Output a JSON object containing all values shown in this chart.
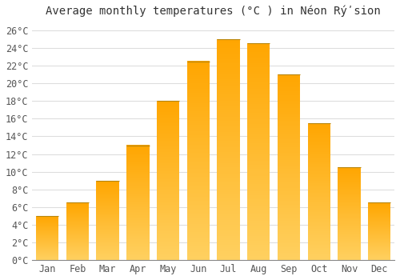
{
  "title": "Average monthly temperatures (°C ) in Néon Rýʹsion",
  "months": [
    "Jan",
    "Feb",
    "Mar",
    "Apr",
    "May",
    "Jun",
    "Jul",
    "Aug",
    "Sep",
    "Oct",
    "Nov",
    "Dec"
  ],
  "values": [
    5.0,
    6.5,
    9.0,
    13.0,
    18.0,
    22.5,
    25.0,
    24.5,
    21.0,
    15.5,
    10.5,
    6.5
  ],
  "bar_color": "#ffb833",
  "bar_edge_color": "#cc8800",
  "ylim": [
    0,
    27
  ],
  "yticks": [
    0,
    2,
    4,
    6,
    8,
    10,
    12,
    14,
    16,
    18,
    20,
    22,
    24,
    26
  ],
  "ytick_labels": [
    "0°C",
    "2°C",
    "4°C",
    "6°C",
    "8°C",
    "10°C",
    "12°C",
    "14°C",
    "16°C",
    "18°C",
    "20°C",
    "22°C",
    "24°C",
    "26°C"
  ],
  "grid_color": "#dddddd",
  "background_color": "#ffffff",
  "plot_bg_color": "#ffffff",
  "bar_width": 0.75,
  "title_fontsize": 10,
  "tick_fontsize": 8.5
}
